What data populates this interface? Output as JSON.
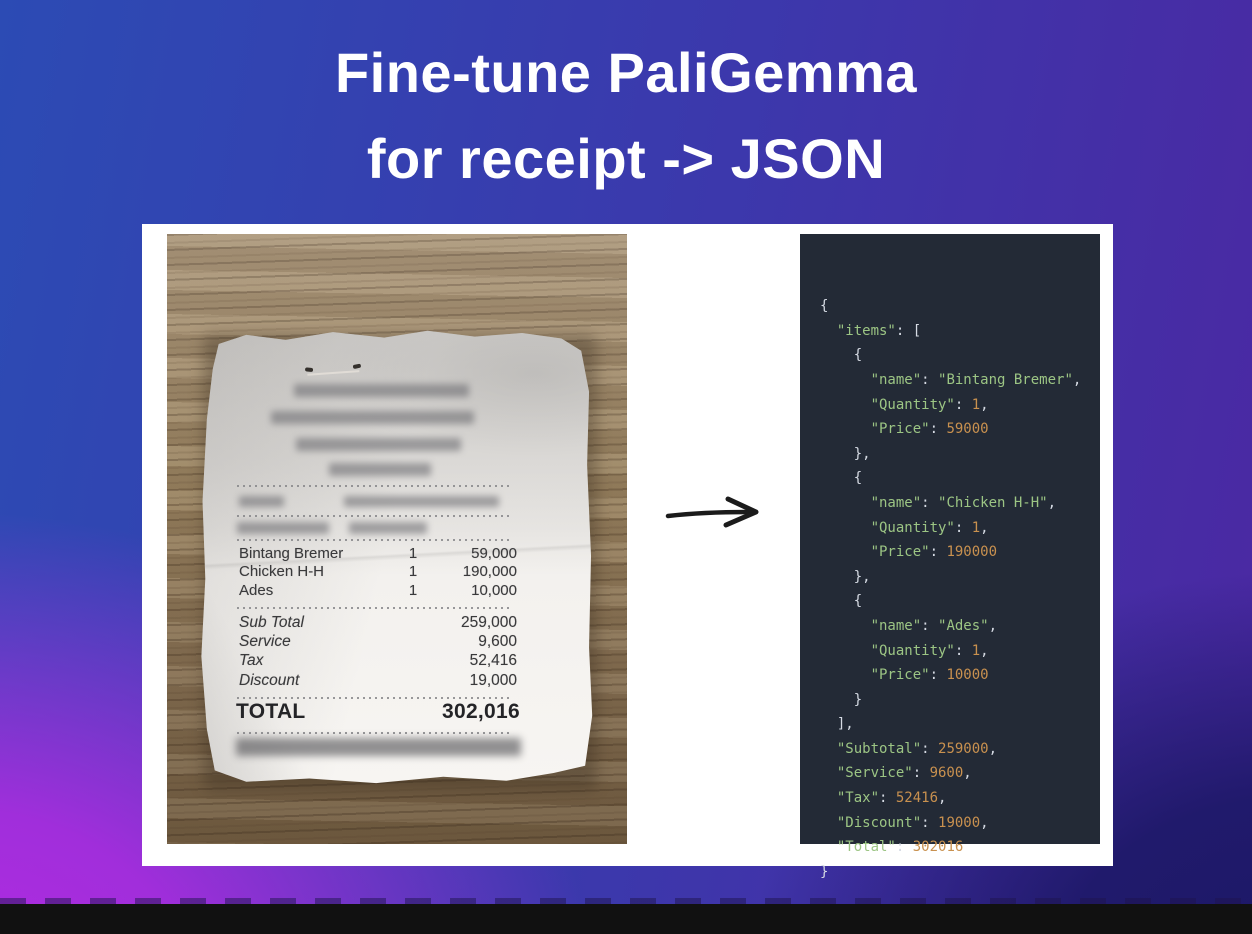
{
  "title": {
    "line1": "Fine-tune PaliGemma",
    "line2": "for receipt -> JSON"
  },
  "receipt": {
    "items": [
      {
        "name": "Bintang Bremer",
        "qty": "1",
        "price": "59,000"
      },
      {
        "name": "Chicken H-H",
        "qty": "1",
        "price": "190,000"
      },
      {
        "name": "Ades",
        "qty": "1",
        "price": "10,000"
      }
    ],
    "summary": [
      {
        "label": "Sub Total",
        "value": "259,000"
      },
      {
        "label": "Service",
        "value": "9,600"
      },
      {
        "label": "Tax",
        "value": "52,416"
      },
      {
        "label": "Discount",
        "value": "19,000"
      }
    ],
    "total": {
      "label": "TOTAL",
      "value": "302,016"
    }
  },
  "arrow": {
    "icon": "right-arrow",
    "color": "#1b1b1b"
  },
  "json_panel": {
    "colors": {
      "background": "#232a36",
      "key": "#9cc584",
      "string": "#9cc584",
      "number": "#c9914f",
      "punct": "#d6dbe4"
    },
    "lines": [
      [
        {
          "t": "p",
          "v": "{"
        }
      ],
      [
        {
          "t": "p",
          "v": "  "
        },
        {
          "t": "k",
          "v": "\"items\""
        },
        {
          "t": "p",
          "v": ": ["
        }
      ],
      [
        {
          "t": "p",
          "v": "    {"
        }
      ],
      [
        {
          "t": "p",
          "v": "      "
        },
        {
          "t": "k",
          "v": "\"name\""
        },
        {
          "t": "p",
          "v": ": "
        },
        {
          "t": "s",
          "v": "\"Bintang Bremer\""
        },
        {
          "t": "p",
          "v": ","
        }
      ],
      [
        {
          "t": "p",
          "v": "      "
        },
        {
          "t": "k",
          "v": "\"Quantity\""
        },
        {
          "t": "p",
          "v": ": "
        },
        {
          "t": "n",
          "v": "1"
        },
        {
          "t": "p",
          "v": ","
        }
      ],
      [
        {
          "t": "p",
          "v": "      "
        },
        {
          "t": "k",
          "v": "\"Price\""
        },
        {
          "t": "p",
          "v": ": "
        },
        {
          "t": "n",
          "v": "59000"
        }
      ],
      [
        {
          "t": "p",
          "v": "    },"
        }
      ],
      [
        {
          "t": "p",
          "v": "    {"
        }
      ],
      [
        {
          "t": "p",
          "v": "      "
        },
        {
          "t": "k",
          "v": "\"name\""
        },
        {
          "t": "p",
          "v": ": "
        },
        {
          "t": "s",
          "v": "\"Chicken H-H\""
        },
        {
          "t": "p",
          "v": ","
        }
      ],
      [
        {
          "t": "p",
          "v": "      "
        },
        {
          "t": "k",
          "v": "\"Quantity\""
        },
        {
          "t": "p",
          "v": ": "
        },
        {
          "t": "n",
          "v": "1"
        },
        {
          "t": "p",
          "v": ","
        }
      ],
      [
        {
          "t": "p",
          "v": "      "
        },
        {
          "t": "k",
          "v": "\"Price\""
        },
        {
          "t": "p",
          "v": ": "
        },
        {
          "t": "n",
          "v": "190000"
        }
      ],
      [
        {
          "t": "p",
          "v": "    },"
        }
      ],
      [
        {
          "t": "p",
          "v": "    {"
        }
      ],
      [
        {
          "t": "p",
          "v": "      "
        },
        {
          "t": "k",
          "v": "\"name\""
        },
        {
          "t": "p",
          "v": ": "
        },
        {
          "t": "s",
          "v": "\"Ades\""
        },
        {
          "t": "p",
          "v": ","
        }
      ],
      [
        {
          "t": "p",
          "v": "      "
        },
        {
          "t": "k",
          "v": "\"Quantity\""
        },
        {
          "t": "p",
          "v": ": "
        },
        {
          "t": "n",
          "v": "1"
        },
        {
          "t": "p",
          "v": ","
        }
      ],
      [
        {
          "t": "p",
          "v": "      "
        },
        {
          "t": "k",
          "v": "\"Price\""
        },
        {
          "t": "p",
          "v": ": "
        },
        {
          "t": "n",
          "v": "10000"
        }
      ],
      [
        {
          "t": "p",
          "v": "    }"
        }
      ],
      [
        {
          "t": "p",
          "v": "  ],"
        }
      ],
      [
        {
          "t": "p",
          "v": "  "
        },
        {
          "t": "k",
          "v": "\"Subtotal\""
        },
        {
          "t": "p",
          "v": ": "
        },
        {
          "t": "n",
          "v": "259000"
        },
        {
          "t": "p",
          "v": ","
        }
      ],
      [
        {
          "t": "p",
          "v": "  "
        },
        {
          "t": "k",
          "v": "\"Service\""
        },
        {
          "t": "p",
          "v": ": "
        },
        {
          "t": "n",
          "v": "9600"
        },
        {
          "t": "p",
          "v": ","
        }
      ],
      [
        {
          "t": "p",
          "v": "  "
        },
        {
          "t": "k",
          "v": "\"Tax\""
        },
        {
          "t": "p",
          "v": ": "
        },
        {
          "t": "n",
          "v": "52416"
        },
        {
          "t": "p",
          "v": ","
        }
      ],
      [
        {
          "t": "p",
          "v": "  "
        },
        {
          "t": "k",
          "v": "\"Discount\""
        },
        {
          "t": "p",
          "v": ": "
        },
        {
          "t": "n",
          "v": "19000"
        },
        {
          "t": "p",
          "v": ","
        }
      ],
      [
        {
          "t": "p",
          "v": "  "
        },
        {
          "t": "k",
          "v": "\"Total\""
        },
        {
          "t": "p",
          "v": ": "
        },
        {
          "t": "n",
          "v": "302016"
        }
      ],
      [
        {
          "t": "p",
          "v": "}"
        }
      ]
    ]
  },
  "background": {
    "top_left": "#2c4bb4",
    "top_right": "#4b28a2",
    "bottom_left": "#b42ae2",
    "bottom_right": "#1c1866",
    "card": "#ffffff"
  }
}
